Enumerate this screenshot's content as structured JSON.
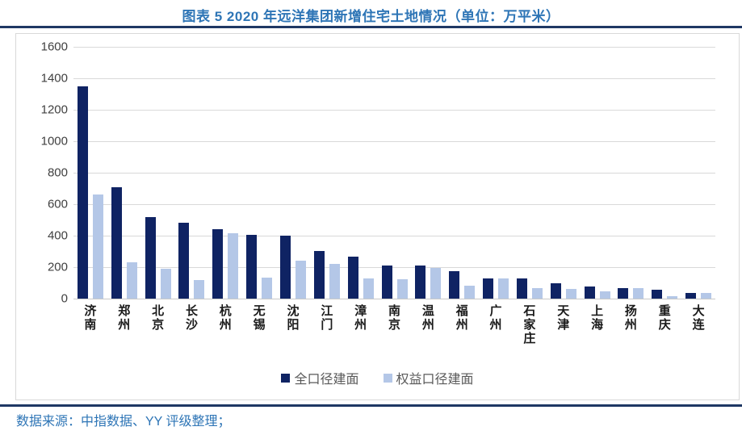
{
  "title": "图表 5 2020 年远洋集团新增住宅土地情况（单位：万平米）",
  "footer": {
    "source_text": "数据来源：中指数据、YY 评级整理；"
  },
  "colors": {
    "title_blue": "#2E75B6",
    "rule_navy": "#1F3864",
    "bar_dark": "#0F2363",
    "bar_light": "#B4C7E7",
    "gridline": "#D9D9D9",
    "axis_label": "#404040",
    "legend_text": "#595959"
  },
  "chart_data": {
    "type": "bar",
    "title": "2020 年远洋集团新增住宅土地情况",
    "unit": "万平米",
    "categories": [
      "济南",
      "郑州",
      "北京",
      "长沙",
      "杭州",
      "无锡",
      "沈阳",
      "江门",
      "漳州",
      "南京",
      "温州",
      "福州",
      "广州",
      "石家庄",
      "天津",
      "上海",
      "扬州",
      "重庆",
      "大连"
    ],
    "series": [
      {
        "name": "全口径建面",
        "color": "#0F2363",
        "values": [
          1350,
          710,
          520,
          480,
          440,
          405,
          400,
          305,
          265,
          210,
          210,
          175,
          130,
          130,
          100,
          75,
          65,
          55,
          35
        ]
      },
      {
        "name": "权益口径建面",
        "color": "#B4C7E7",
        "values": [
          660,
          230,
          190,
          120,
          415,
          135,
          240,
          220,
          130,
          125,
          195,
          80,
          130,
          65,
          60,
          45,
          68,
          18,
          38
        ]
      }
    ],
    "ylim": [
      0,
      1600
    ],
    "ytick_interval": 200,
    "yticks": [
      0,
      200,
      400,
      600,
      800,
      1000,
      1200,
      1400,
      1600
    ],
    "grid": true,
    "legend_position": "bottom",
    "xlabel": "",
    "ylabel": ""
  }
}
